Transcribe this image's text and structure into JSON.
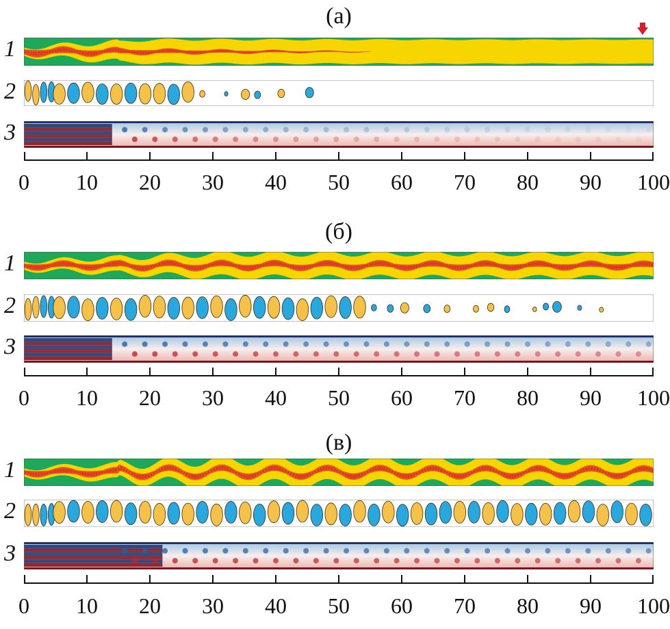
{
  "panels": [
    {
      "label": "(а)",
      "rows": [
        "1",
        "2",
        "3"
      ]
    },
    {
      "label": "(б)",
      "rows": [
        "1",
        "2",
        "3"
      ]
    },
    {
      "label": "(в)",
      "rows": [
        "1",
        "2",
        "3"
      ]
    }
  ],
  "axis": {
    "ticks": [
      "0",
      "10",
      "20",
      "30",
      "40",
      "50",
      "60",
      "70",
      "80",
      "90",
      "100"
    ]
  },
  "marker": {
    "icon": "red-down-arrow-icon",
    "color": "#d0202a"
  },
  "colors": {
    "green": "#1ea85a",
    "yellow": "#f7d500",
    "red": "#d8262a",
    "blue": "#2aa7dc",
    "gold": "#f4c24a",
    "dark_blue": "#1b2f6b",
    "dark_red": "#7a0f1a"
  }
}
